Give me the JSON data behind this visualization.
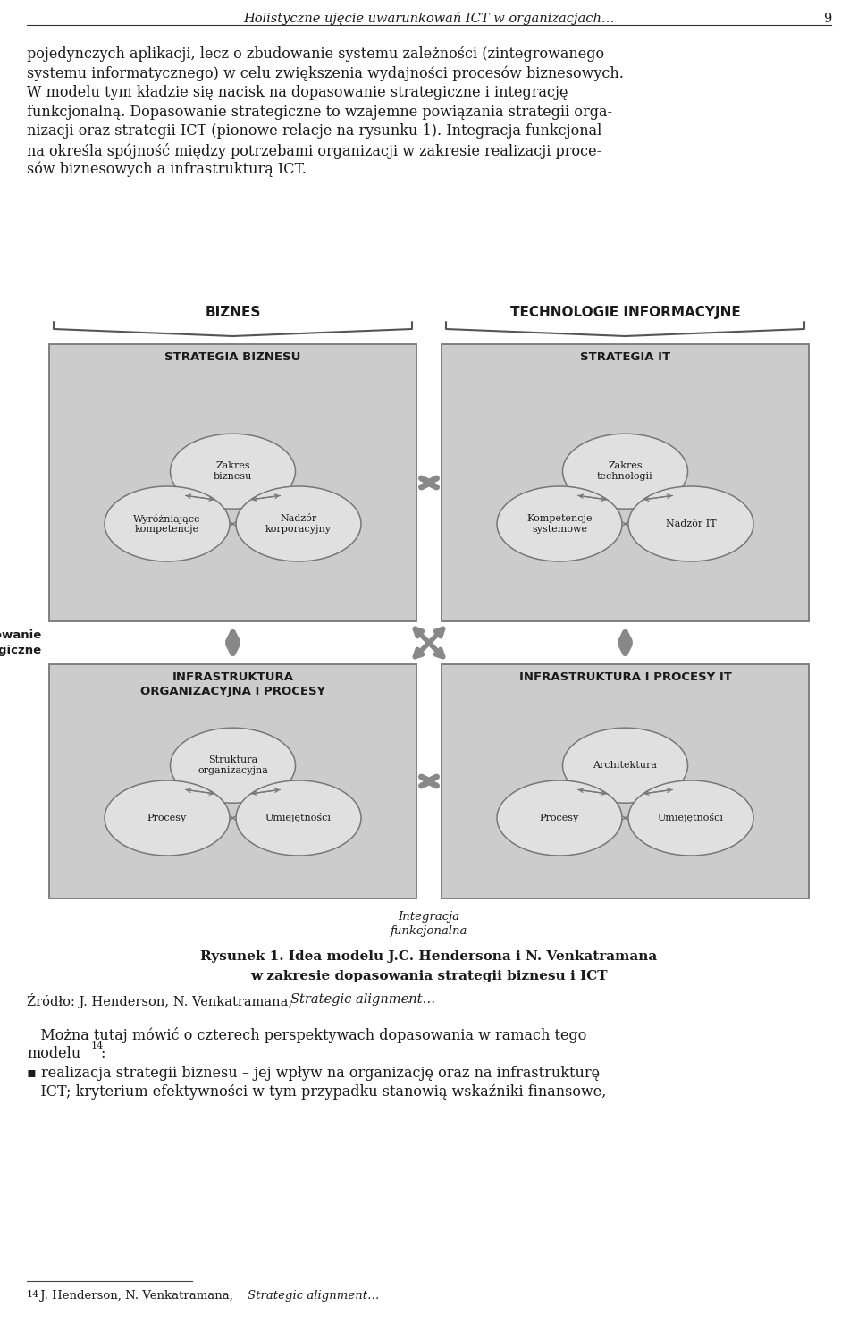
{
  "page_title": "Holistyczne ujęcie uwarunkowań ICT w organizacjach…",
  "page_number": "9",
  "label_biznes": "BIZNES",
  "label_tech": "TECHNOLOGIE INFORMACYJNE",
  "box1_title": "STRATEGIA BIZNESU",
  "box2_title": "STRATEGIA IT",
  "box3_title": "INFRASTRUKTURA\nORGANIZACYJNA I PROCESY",
  "box4_title": "INFRASTRUKTURA I PROCESY IT",
  "b1_c1": "Zakres\nbiznesu",
  "b1_c2": "Wyróżniające\nkompetencje",
  "b1_c3": "Nadzór\nkorporacyjny",
  "b2_c1": "Zakres\ntechnologii",
  "b2_c2": "Kompetencje\nsystemowe",
  "b2_c3": "Nadzór IT",
  "b3_c1": "Struktura\norganizacyjna",
  "b3_c2": "Procesy",
  "b3_c3": "Umiejętności",
  "b4_c1": "Architektura",
  "b4_c2": "Procesy",
  "b4_c3": "Umiejętności",
  "label_dopasowanie": "Dopasowanie\nstrategiczne",
  "label_integracja": "Integracja\nfunkcjonalna",
  "fig_caption_line1": "Rysunek 1. Idea modelu J.C. Hendersona i N. Venkatramana",
  "fig_caption_line2": "w zakresie dopasowania strategii biznesu i ICT",
  "source_normal": "Źródło: J. Henderson, N. Venkatramana, ",
  "source_italic": "Strategic alignment…",
  "source_end": " .",
  "para2_line1": "   Można tutaj mówić o czterech perspektywach dopasowania w ramach tego",
  "para2_line2": "modelu",
  "para2_sup": "14",
  "para2_end": ":",
  "bullet_line1": "▪ realizacja strategii biznesu – jej wpływ na organizację oraz na infrastrukturę",
  "bullet_line2": "   ICT; kryterium efektywności w tym przypadku stanowią wskaźniki finansowe,",
  "fn_super": "14",
  "fn_normal": " J. Henderson, N. Venkatramana, ",
  "fn_italic": "Strategic alignment…",
  "bg_color": "#ffffff",
  "box_fill": "#cccccc",
  "ellipse_fill": "#e0e0e0",
  "text_color": "#1a1a1a",
  "border_color": "#777777",
  "arrow_color": "#888888"
}
